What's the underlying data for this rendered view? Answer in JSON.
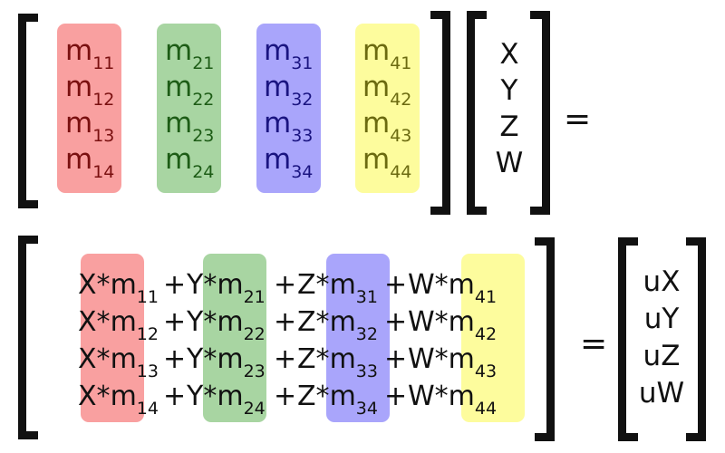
{
  "colors": {
    "red": "#f9a0a0",
    "green": "#a8d5a2",
    "blue": "#a9a5fb",
    "yellow": "#fdfc9d",
    "red_text": "#7a1010",
    "green_text": "#1d5c16",
    "blue_text": "#1a1480",
    "yellow_text": "#6b6a10",
    "bracket": "#111111"
  },
  "matrix": {
    "columns": [
      {
        "letter": "m",
        "subs": [
          "11",
          "12",
          "13",
          "14"
        ],
        "color": "red"
      },
      {
        "letter": "m",
        "subs": [
          "21",
          "22",
          "23",
          "24"
        ],
        "color": "green"
      },
      {
        "letter": "m",
        "subs": [
          "31",
          "32",
          "33",
          "34"
        ],
        "color": "blue"
      },
      {
        "letter": "m",
        "subs": [
          "41",
          "42",
          "43",
          "44"
        ],
        "color": "yellow"
      }
    ]
  },
  "vector": [
    "X",
    "Y",
    "Z",
    "W"
  ],
  "equals": "=",
  "result_rows": [
    [
      {
        "var": "X*",
        "letter": "m",
        "sub": "11"
      },
      {
        "var": "Y*",
        "letter": "m",
        "sub": "21"
      },
      {
        "var": "Z*",
        "letter": "m",
        "sub": "31"
      },
      {
        "var": "W*",
        "letter": "m",
        "sub": "41"
      }
    ],
    [
      {
        "var": "X*",
        "letter": "m",
        "sub": "12"
      },
      {
        "var": "Y*",
        "letter": "m",
        "sub": "22"
      },
      {
        "var": "Z*",
        "letter": "m",
        "sub": "32"
      },
      {
        "var": "W*",
        "letter": "m",
        "sub": "42"
      }
    ],
    [
      {
        "var": "X*",
        "letter": "m",
        "sub": "13"
      },
      {
        "var": "Y*",
        "letter": "m",
        "sub": "23"
      },
      {
        "var": "Z*",
        "letter": "m",
        "sub": "33"
      },
      {
        "var": "W*",
        "letter": "m",
        "sub": "43"
      }
    ],
    [
      {
        "var": "X*",
        "letter": "m",
        "sub": "14"
      },
      {
        "var": "Y*",
        "letter": "m",
        "sub": "24"
      },
      {
        "var": "Z*",
        "letter": "m",
        "sub": "34"
      },
      {
        "var": "W*",
        "letter": "m",
        "sub": "44"
      }
    ]
  ],
  "plus": "+",
  "result_vector": [
    "uX",
    "uY",
    "uZ",
    "uW"
  ]
}
